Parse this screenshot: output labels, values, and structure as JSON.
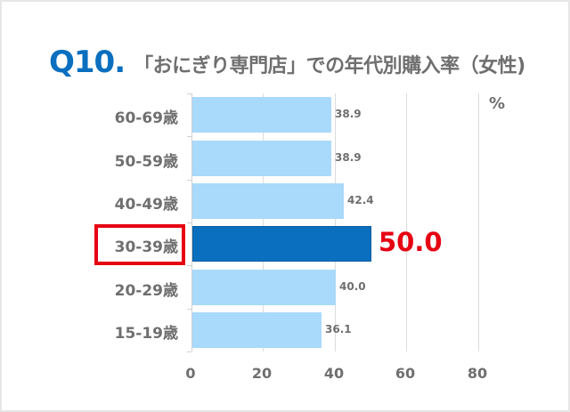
{
  "title": {
    "number": "Q10.",
    "text": "「おにぎり専門店」での年代別購入率（女性)"
  },
  "unit_label": "%",
  "highlight": {
    "category": "30-39歳",
    "value_label": "50.0",
    "box_color": "#e60012",
    "value_color": "#e60012"
  },
  "colors": {
    "bar_default": "#a9d9fb",
    "bar_highlight": "#0a6fbf",
    "title_number": "#0a6fbf",
    "text": "#6f6f6f"
  },
  "chart_data": {
    "type": "bar",
    "orientation": "horizontal",
    "title": "Q10. 「おにぎり専門店」での年代別購入率（女性)",
    "categories": [
      "60-69歳",
      "50-59歳",
      "40-49歳",
      "30-39歳",
      "20-29歳",
      "15-19歳"
    ],
    "values": [
      38.9,
      38.9,
      42.4,
      50.0,
      40.0,
      36.1
    ],
    "value_labels": [
      "38.9",
      "38.9",
      "42.4",
      "50.0",
      "40.0",
      "36.1"
    ],
    "highlighted_category": "30-39歳",
    "xlabel": "",
    "ylabel": "",
    "unit": "%",
    "xlim": [
      0,
      80
    ],
    "x_ticks": [
      "0",
      "20",
      "40",
      "60",
      "80"
    ],
    "grid": true,
    "legend": "none"
  }
}
